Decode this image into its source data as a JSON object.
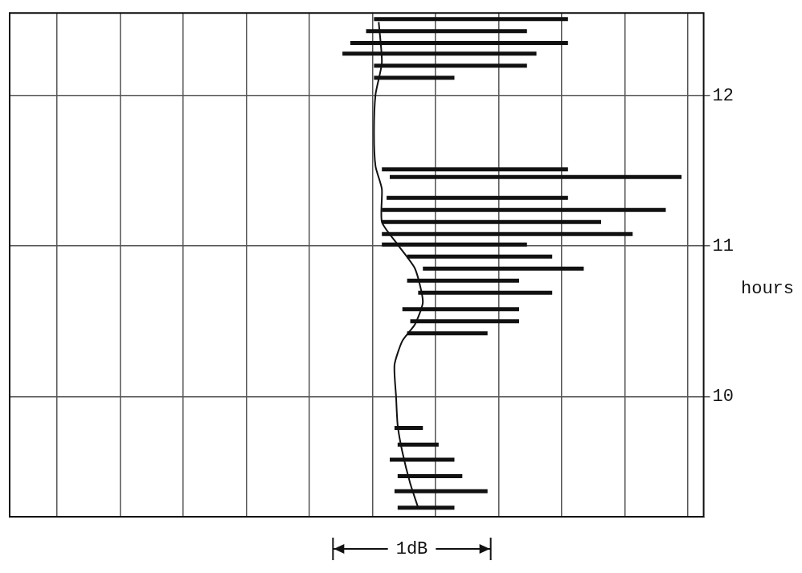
{
  "chart_data": {
    "type": "line",
    "y_label": "hours",
    "color": "#111111",
    "x": [
      2.69,
      2.64,
      2.59,
      2.56,
      2.55,
      2.54,
      2.59,
      2.67,
      2.72,
      2.67,
      2.56,
      2.46,
      2.46,
      2.42,
      2.41,
      2.42,
      2.46,
      2.44
    ],
    "y": [
      9.26,
      9.42,
      9.63,
      9.81,
      10.0,
      10.21,
      10.37,
      10.48,
      10.63,
      10.85,
      11.01,
      11.16,
      11.38,
      11.53,
      11.75,
      12.01,
      12.22,
      12.49
    ],
    "spans": [
      [
        9.26,
        2.56,
        2.92
      ],
      [
        9.37,
        2.54,
        3.13
      ],
      [
        9.47,
        2.56,
        2.97
      ],
      [
        9.58,
        2.51,
        2.92
      ],
      [
        9.68,
        2.56,
        2.82
      ],
      [
        9.79,
        2.54,
        2.72
      ],
      [
        10.42,
        2.62,
        3.13
      ],
      [
        10.5,
        2.64,
        3.33
      ],
      [
        10.58,
        2.59,
        3.33
      ],
      [
        10.69,
        2.69,
        3.54
      ],
      [
        10.77,
        2.62,
        3.33
      ],
      [
        10.85,
        2.72,
        3.74
      ],
      [
        10.93,
        2.62,
        3.54
      ],
      [
        11.01,
        2.46,
        3.38
      ],
      [
        11.08,
        2.46,
        4.05
      ],
      [
        11.16,
        2.46,
        3.85
      ],
      [
        11.24,
        2.46,
        4.26
      ],
      [
        11.32,
        2.49,
        3.64
      ],
      [
        11.46,
        2.51,
        4.36
      ],
      [
        11.51,
        2.46,
        3.64
      ],
      [
        12.12,
        2.41,
        2.92
      ],
      [
        12.2,
        2.41,
        3.38
      ],
      [
        12.28,
        2.21,
        3.44
      ],
      [
        12.35,
        2.26,
        3.64
      ],
      [
        12.43,
        2.36,
        3.38
      ],
      [
        12.51,
        2.41,
        3.64
      ]
    ],
    "xlim": [
      0.1,
      4.5
    ],
    "xticks": [
      0.4,
      0.8,
      1.2,
      1.6,
      2.0,
      2.4,
      2.8,
      3.2,
      3.6,
      4.0,
      4.4
    ],
    "ylim": [
      9.2,
      12.55
    ],
    "yticks": [
      10,
      11,
      12
    ],
    "grid": true,
    "tick_labels": "y",
    "annotations": [
      {
        "text": "1dB",
        "x": [
          2.15,
          3.15
        ]
      }
    ]
  }
}
